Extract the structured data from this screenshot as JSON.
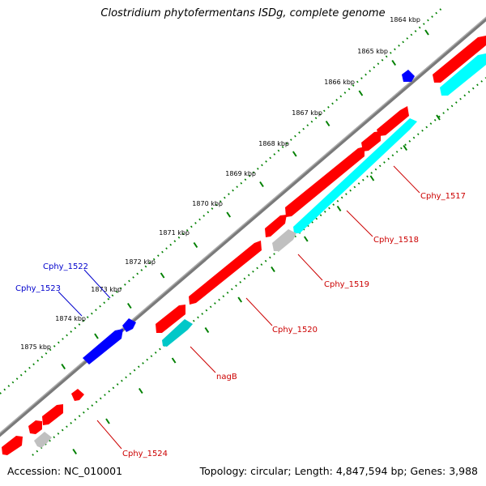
{
  "header": {
    "title": "Clostridium phytofermentans ISDg, complete genome"
  },
  "colors": {
    "forward_gene": "#ff0000",
    "reverse_gene": "#0000ff",
    "cds": "#00ffff",
    "other_feature": "#c0c0c0",
    "label_forward": "#cc0000",
    "label_reverse": "#0000cc",
    "backbone": "#808080",
    "ruler": "#008000"
  },
  "ruler": {
    "ticks": [
      "1864 kbp",
      "1865 kbp",
      "1866 kbp",
      "1867 kbp",
      "1868 kbp",
      "1869 kbp",
      "1870 kbp",
      "1871 kbp",
      "1872 kbp",
      "1873 kbp",
      "1874 kbp",
      "1875 kbp"
    ]
  },
  "genes": {
    "reverse_labels": [
      "Cphy_1522",
      "Cphy_1523"
    ],
    "forward_labels": [
      "Cphy_1517",
      "Cphy_1518",
      "Cphy_1519",
      "Cphy_1520",
      "nagB",
      "Cphy_1524"
    ]
  },
  "footer": {
    "accession": "Accession: NC_010001",
    "summary": "Topology: circular; Length: 4,847,594 bp; Genes: 3,988"
  }
}
